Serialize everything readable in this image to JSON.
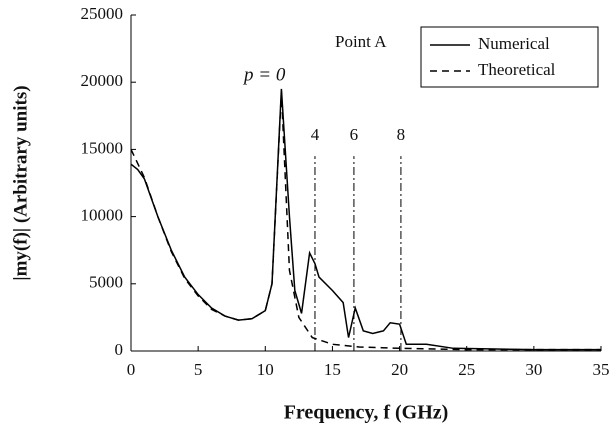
{
  "chart_data": {
    "type": "line",
    "xlabel": "Frequency, f (GHz)",
    "ylabel": "|my(f)| (Arbitrary units)",
    "xlim": [
      0,
      35
    ],
    "xticks": [
      0,
      5,
      10,
      15,
      20,
      25,
      30,
      35
    ],
    "ylim": [
      0,
      25000
    ],
    "yticks": [
      0,
      5000,
      10000,
      15000,
      20000,
      25000
    ],
    "legend": "upper right",
    "annotations": [
      "Point A",
      "p = 0"
    ],
    "marker_top": 14500,
    "markers": [
      {
        "x": 13.7,
        "label": "4"
      },
      {
        "x": 16.6,
        "label": "6"
      },
      {
        "x": 20.1,
        "label": "8"
      }
    ],
    "series": [
      {
        "name": "Numerical",
        "color": "#000000",
        "dash": "solid",
        "x": [
          0,
          0.5,
          1,
          2,
          3,
          4,
          5,
          6,
          7,
          8,
          9,
          10,
          10.5,
          11.2,
          11.8,
          12.2,
          12.7,
          13.3,
          13.7,
          14,
          15,
          15.8,
          16.2,
          16.7,
          17.3,
          18,
          18.8,
          19.3,
          20,
          20.5,
          22,
          24,
          30,
          35
        ],
        "values": [
          13900,
          13500,
          12800,
          10000,
          7500,
          5500,
          4200,
          3200,
          2600,
          2300,
          2400,
          3000,
          5000,
          19500,
          10000,
          4500,
          2800,
          7300,
          6500,
          5500,
          4500,
          3600,
          1000,
          3200,
          1500,
          1300,
          1500,
          2100,
          2000,
          500,
          500,
          200,
          100,
          100
        ]
      },
      {
        "name": "Theoretical",
        "color": "#000000",
        "dash": "dashed",
        "x": [
          0,
          1,
          2,
          3,
          4,
          5,
          6,
          7,
          8,
          9,
          10,
          10.5,
          11.2,
          11.8,
          12.5,
          13.5,
          15,
          17,
          20,
          25,
          35
        ],
        "values": [
          15000,
          12900,
          10000,
          7400,
          5400,
          4100,
          3100,
          2600,
          2300,
          2400,
          3000,
          5000,
          19300,
          6000,
          2500,
          1000,
          500,
          300,
          200,
          100,
          100
        ]
      }
    ]
  }
}
